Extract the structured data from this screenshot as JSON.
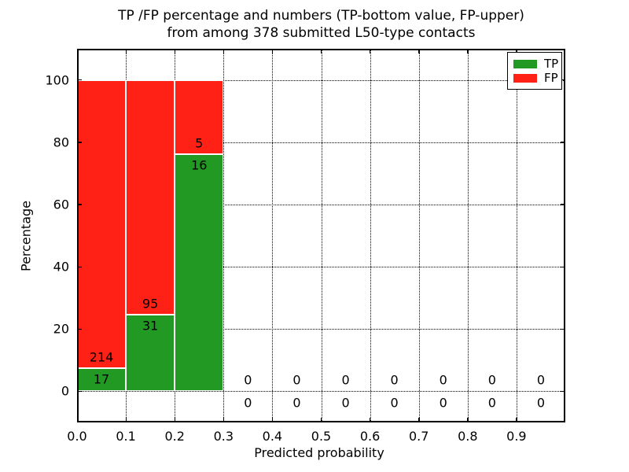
{
  "title": {
    "line1": "TP /FP percentage and numbers (TP-bottom value, FP-upper)",
    "line2": "from among 378 submitted L50-type contacts"
  },
  "axes": {
    "xlabel": "Predicted probability",
    "ylabel": "Percentage",
    "x_ticks": [
      {
        "value": 0.0,
        "label": "0.0"
      },
      {
        "value": 0.1,
        "label": "0.1"
      },
      {
        "value": 0.2,
        "label": "0.2"
      },
      {
        "value": 0.3,
        "label": "0.3"
      },
      {
        "value": 0.4,
        "label": "0.4"
      },
      {
        "value": 0.5,
        "label": "0.5"
      },
      {
        "value": 0.6,
        "label": "0.6"
      },
      {
        "value": 0.7,
        "label": "0.7"
      },
      {
        "value": 0.8,
        "label": "0.8"
      },
      {
        "value": 0.9,
        "label": "0.9"
      }
    ],
    "y_ticks": [
      {
        "value": 0,
        "label": "0"
      },
      {
        "value": 20,
        "label": "20"
      },
      {
        "value": 40,
        "label": "40"
      },
      {
        "value": 60,
        "label": "60"
      },
      {
        "value": 80,
        "label": "80"
      },
      {
        "value": 100,
        "label": "100"
      }
    ],
    "xlim": [
      0.0,
      1.0
    ],
    "ylim": [
      -10,
      110
    ],
    "grid": "dotted"
  },
  "legend": {
    "position": "upper-right",
    "items": [
      {
        "label": "TP",
        "color": "#229922"
      },
      {
        "label": "FP",
        "color": "#ff2116"
      }
    ]
  },
  "chart_data": {
    "type": "bar",
    "stacked": true,
    "title": "TP /FP percentage and numbers (TP-bottom value, FP-upper) from among 378 submitted L50-type contacts",
    "xlabel": "Predicted probability",
    "ylabel": "Percentage",
    "xlim": [
      0.0,
      1.0
    ],
    "ylim": [
      -10,
      110
    ],
    "grid": true,
    "legend_position": "upper-right",
    "total_submitted": 378,
    "bar_width": 0.1,
    "categories": [
      "0.0-0.1",
      "0.1-0.2",
      "0.2-0.3",
      "0.3-0.4",
      "0.4-0.5",
      "0.5-0.6",
      "0.6-0.7",
      "0.7-0.8",
      "0.8-0.9",
      "0.9-1.0"
    ],
    "series": [
      {
        "name": "TP",
        "color": "#229922",
        "counts": [
          17,
          31,
          16,
          0,
          0,
          0,
          0,
          0,
          0,
          0
        ]
      },
      {
        "name": "FP",
        "color": "#ff2116",
        "counts": [
          214,
          95,
          5,
          0,
          0,
          0,
          0,
          0,
          0,
          0
        ]
      }
    ],
    "bins": [
      {
        "range": "0.0-0.1",
        "x0": 0.0,
        "tp": 17,
        "fp": 214,
        "tp_pct": 7.36,
        "fp_pct": 92.64
      },
      {
        "range": "0.1-0.2",
        "x0": 0.1,
        "tp": 31,
        "fp": 95,
        "tp_pct": 24.6,
        "fp_pct": 75.4
      },
      {
        "range": "0.2-0.3",
        "x0": 0.2,
        "tp": 16,
        "fp": 5,
        "tp_pct": 76.19,
        "fp_pct": 23.81
      },
      {
        "range": "0.3-0.4",
        "x0": 0.3,
        "tp": 0,
        "fp": 0,
        "tp_pct": 0,
        "fp_pct": 0
      },
      {
        "range": "0.4-0.5",
        "x0": 0.4,
        "tp": 0,
        "fp": 0,
        "tp_pct": 0,
        "fp_pct": 0
      },
      {
        "range": "0.5-0.6",
        "x0": 0.5,
        "tp": 0,
        "fp": 0,
        "tp_pct": 0,
        "fp_pct": 0
      },
      {
        "range": "0.6-0.7",
        "x0": 0.6,
        "tp": 0,
        "fp": 0,
        "tp_pct": 0,
        "fp_pct": 0
      },
      {
        "range": "0.7-0.8",
        "x0": 0.7,
        "tp": 0,
        "fp": 0,
        "tp_pct": 0,
        "fp_pct": 0
      },
      {
        "range": "0.8-0.9",
        "x0": 0.8,
        "tp": 0,
        "fp": 0,
        "tp_pct": 0,
        "fp_pct": 0
      },
      {
        "range": "0.9-1.0",
        "x0": 0.9,
        "tp": 0,
        "fp": 0,
        "tp_pct": 0,
        "fp_pct": 0
      }
    ],
    "colors": {
      "tp": "#229922",
      "fp": "#ff2116",
      "edge": "#ffffff"
    }
  }
}
